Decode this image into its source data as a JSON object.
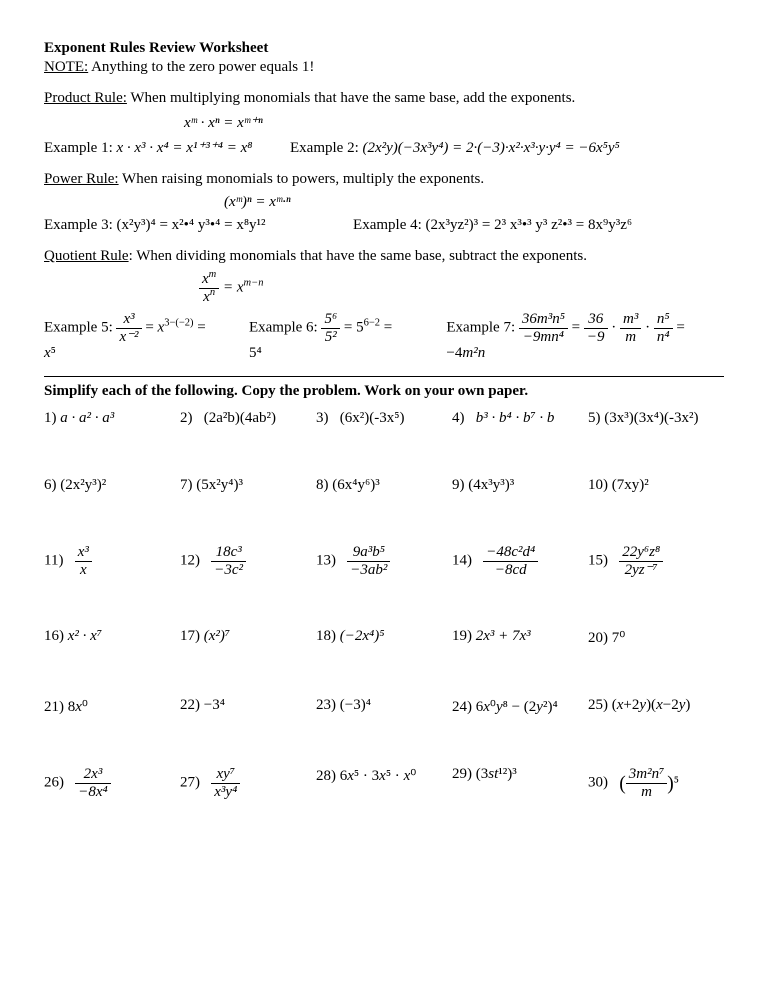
{
  "title": "Exponent Rules Review Worksheet",
  "note_prefix": "NOTE:",
  "note_text": " Anything to the zero power equals 1!",
  "product_rule_label": "Product Rule:",
  "product_rule_text": "  When multiplying monomials that have the same base, add the exponents.",
  "product_formula": "xᵐ · xⁿ = xᵐ⁺ⁿ",
  "ex1_label": "Example 1:  ",
  "ex1_math": "x · x³ · x⁴ = x¹⁺³⁺⁴ = x⁸",
  "ex2_label": "Example 2:  ",
  "ex2_math": "(2x²y)(−3x³y⁴) = 2·(−3)·x²·x³·y·y⁴ = −6x⁵y⁵",
  "power_rule_label": "Power Rule:",
  "power_rule_text": " When raising monomials to powers, multiply the exponents.",
  "power_formula": "(xᵐ)ⁿ = xᵐ·ⁿ",
  "ex3_label": "Example 3:  ",
  "ex3_math": "(x²y³)⁴  =  x²•⁴ y³•⁴  =  x⁸y¹²",
  "ex4_label": "Example 4: ",
  "ex4_math": "(2x³yz²)³  =  2³ x³•³ y³ z²•³  =  8x⁹y³z⁶",
  "quotient_rule_label": "Quotient Rule",
  "quotient_rule_text": ": When dividing monomials that have the same base, subtract the exponents.",
  "ex5_label": "Example 5:  ",
  "ex6_label": "Example 6:  ",
  "ex7_label": "Example 7:  ",
  "section_head": "Simplify each of the following.  Copy the problem.  Work on your own paper.",
  "problems": [
    [
      "1)  <span class='it'>a · a² · a³</span>",
      "2)&nbsp;&nbsp;&nbsp;(2a²b)(4ab²)",
      "3)&nbsp;&nbsp;&nbsp;(6x²)(-3x⁵)",
      "4)&nbsp;&nbsp;&nbsp;<span class='it'>b³ · b⁴ · b⁷ · b</span>",
      "5)  (3x³)(3x⁴)(-3x²)"
    ],
    [
      "6)  (2x²y³)²",
      "7)  (5x²y⁴)³",
      "8)  (6x⁴y⁶)³",
      "9)  (4x³y³)³",
      "10)  (7xy)²"
    ],
    [
      "11)&nbsp;&nbsp;&nbsp;<span class='frac'><span class='fn'>x³</span><span class='fd'>x</span></span>",
      "12)&nbsp;&nbsp;&nbsp;<span class='frac'><span class='fn'>18c³</span><span class='fd'>−3c²</span></span>",
      "13)&nbsp;&nbsp;&nbsp;<span class='frac'><span class='fn'>9a³b⁵</span><span class='fd'>−3ab²</span></span>",
      "14)&nbsp;&nbsp;&nbsp;<span class='frac'><span class='fn'>−48c²d⁴</span><span class='fd'>−8cd</span></span>",
      "15)&nbsp;&nbsp;&nbsp;<span class='frac'><span class='fn'>22y⁶z⁸</span><span class='fd'>2yz⁻⁷</span></span>"
    ],
    [
      "16)  <span class='it'>x² · x⁷</span>",
      "17) <span class='it'>(x²)⁷</span>",
      "18) <span class='it'>(−2x⁴)⁵</span>",
      "19) <span class='it'>2x³ + 7x³</span>",
      "20)  7⁰"
    ],
    [
      "21)  8<span class='it'>x</span>⁰",
      "22) −3⁴",
      "23) (−3)⁴",
      "24) 6<span class='it'>x</span>⁰<span class='it'>y</span>⁸ − (2<span class='it'>y</span>²)⁴",
      "25) (<span class='it'>x</span>+2<span class='it'>y</span>)(<span class='it'>x</span>−2<span class='it'>y</span>)"
    ],
    [
      "26)&nbsp;&nbsp;&nbsp;<span class='frac'><span class='fn'>2x³</span><span class='fd'>−8x⁴</span></span>",
      "27)&nbsp;&nbsp;&nbsp;<span class='frac'><span class='fn'>xy⁷</span><span class='fd'>x³y⁴</span></span>",
      "28) 6<span class='it'>x</span>⁵ · 3<span class='it'>x</span>⁵ · <span class='it'>x</span>⁰",
      "29) (3<span class='it'>st</span>¹²)³",
      "30)&nbsp;&nbsp;&nbsp;<span class='big-paren'>(</span><span class='frac'><span class='fn'>3m²n⁷</span><span class='fd'>m</span></span><span class='big-paren'>)</span>⁵"
    ]
  ]
}
